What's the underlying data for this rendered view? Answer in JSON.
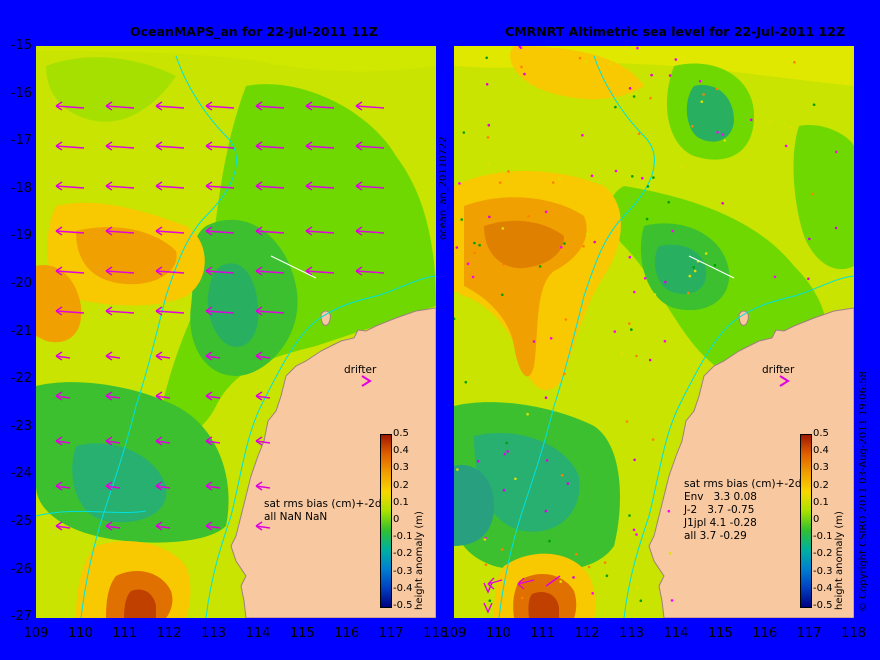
{
  "left": {
    "title": "OceanMAPS_an for 22-Jul-2011 11Z",
    "drifter_label": "drifter",
    "stats_title": "sat rms bias (cm)+-2d",
    "stats_lines": [
      "all NaN NaN"
    ],
    "side_label": "ocean_an_20110722",
    "colorbar_label": "height anomaly (m)"
  },
  "right": {
    "title": "CMRNRT Altimetric sea level  for 22-Jul-2011 12Z",
    "drifter_label": "drifter",
    "stats_title": "sat rms bias (cm)+-2d",
    "stats_lines": [
      "Env   3.3 0.08",
      "J-2   3.7 -0.75",
      "J1jpl 4.1 -0.28",
      "all 3.7 -0.29"
    ],
    "colorbar_label": "height anomaly (m)",
    "copyright": "© Copyright CSIRO 2011  03-Aug-2011 19:06:58"
  },
  "y_ticks": [
    "-15",
    "-16",
    "-17",
    "-18",
    "-19",
    "-20",
    "-21",
    "-22",
    "-23",
    "-24",
    "-25",
    "-26",
    "-27"
  ],
  "x_ticks": [
    "109",
    "110",
    "111",
    "112",
    "113",
    "114",
    "115",
    "116",
    "117",
    "118"
  ],
  "colorbar_ticks": [
    "0.5",
    "0.4",
    "0.3",
    "0.2",
    "0.1",
    "0",
    "-0.1",
    "-0.2",
    "-0.3",
    "-0.4",
    "-0.5"
  ],
  "colors": {
    "background": "#0000ff",
    "land": "#f8c8a0",
    "coastline": "#c0a0a0",
    "bathymetry_contour": "#00e0e0",
    "arrows": "#e000e0"
  }
}
